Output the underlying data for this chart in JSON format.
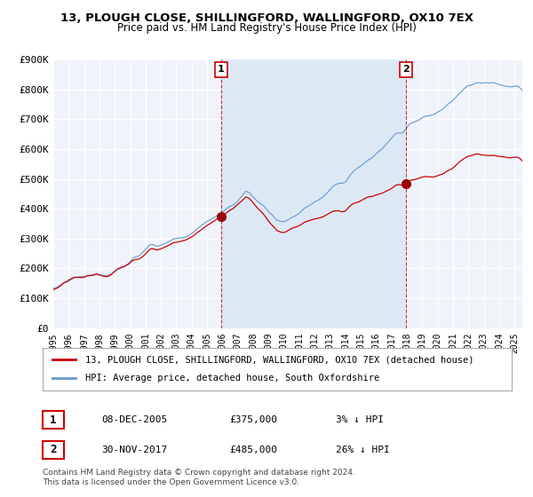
{
  "title": "13, PLOUGH CLOSE, SHILLINGFORD, WALLINGFORD, OX10 7EX",
  "subtitle": "Price paid vs. HM Land Registry's House Price Index (HPI)",
  "ylabel": "",
  "background_color": "#ffffff",
  "plot_bg_color": "#f0f4fa",
  "grid_color": "#ffffff",
  "ylim": [
    0,
    900000
  ],
  "yticks": [
    0,
    100000,
    200000,
    300000,
    400000,
    500000,
    600000,
    700000,
    800000,
    900000
  ],
  "ytick_labels": [
    "£0",
    "£100K",
    "£200K",
    "£300K",
    "£400K",
    "£500K",
    "£600K",
    "£700K",
    "£800K",
    "£900K"
  ],
  "red_line_color": "#cc0000",
  "blue_line_color": "#6699cc",
  "shading_color": "#dde8f5",
  "marker_color": "#990000",
  "vline_color": "#cc0000",
  "purchase1_x": 2005.92,
  "purchase1_y": 375000,
  "purchase2_x": 2017.92,
  "purchase2_y": 485000,
  "legend_label_red": "13, PLOUGH CLOSE, SHILLINGFORD, WALLINGFORD, OX10 7EX (detached house)",
  "legend_label_blue": "HPI: Average price, detached house, South Oxfordshire",
  "annotation1_label": "1",
  "annotation2_label": "2",
  "table_rows": [
    {
      "num": "1",
      "date": "08-DEC-2005",
      "price": "£375,000",
      "hpi": "3% ↓ HPI"
    },
    {
      "num": "2",
      "date": "30-NOV-2017",
      "price": "£485,000",
      "hpi": "26% ↓ HPI"
    }
  ],
  "footnote": "Contains HM Land Registry data © Crown copyright and database right 2024.\nThis data is licensed under the Open Government Licence v3.0.",
  "xmin": 1995.0,
  "xmax": 2025.5
}
